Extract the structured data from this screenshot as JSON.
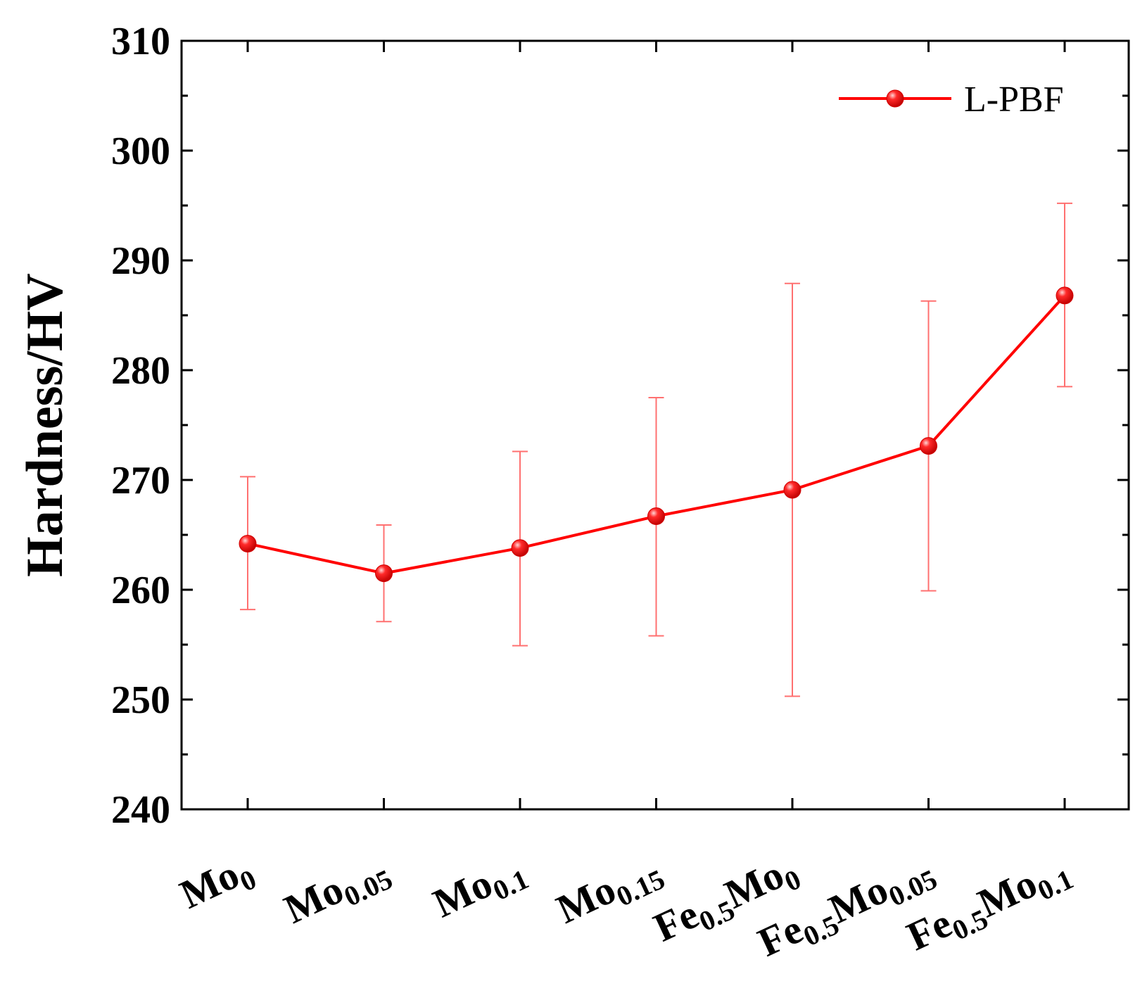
{
  "chart_data": {
    "type": "line",
    "ylabel": "Hardness/HV",
    "ylim": [
      240,
      310
    ],
    "yticks": [
      240,
      250,
      260,
      270,
      280,
      290,
      300,
      310
    ],
    "categories": [
      {
        "base": "Mo",
        "sub": "0"
      },
      {
        "base": "Mo",
        "sub": "0.05"
      },
      {
        "base": "Mo",
        "sub": "0.1"
      },
      {
        "base": "Mo",
        "sub": "0.15"
      },
      {
        "pre": "Fe",
        "presub": "0.5",
        "base": "Mo",
        "sub": "0"
      },
      {
        "pre": "Fe",
        "presub": "0.5",
        "base": "Mo",
        "sub": "0.05"
      },
      {
        "pre": "Fe",
        "presub": "0.5",
        "base": "Mo",
        "sub": "0.1"
      }
    ],
    "series": [
      {
        "name": "L-PBF",
        "color": "#ff0000",
        "values": [
          264.2,
          261.5,
          263.8,
          266.7,
          269.1,
          273.1,
          286.8
        ],
        "err_low": [
          258.2,
          257.1,
          254.9,
          255.8,
          250.3,
          259.9,
          278.5
        ],
        "err_high": [
          270.3,
          265.9,
          272.6,
          277.5,
          287.9,
          286.3,
          295.2
        ]
      }
    ],
    "legend_position": "top-right",
    "grid": false
  }
}
